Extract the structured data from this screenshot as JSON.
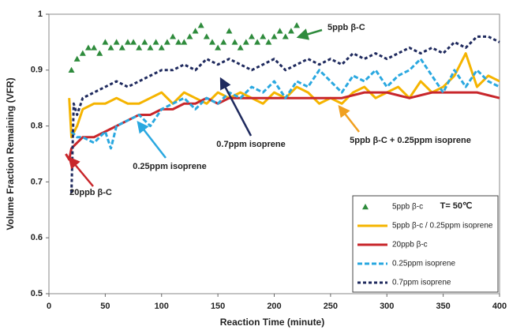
{
  "chart_data": {
    "type": "line",
    "xlabel": "Reaction Time (minute)",
    "ylabel": "Volume Fraction Remaining (VFR)",
    "xlim": [
      0,
      400
    ],
    "xticks": [
      0,
      50,
      100,
      150,
      200,
      250,
      300,
      350,
      400
    ],
    "ylim": [
      0.5,
      1
    ],
    "yticks": [
      0.5,
      0.6,
      0.7,
      0.8,
      0.9,
      1
    ],
    "legend": "lower right",
    "legend_note": "T= 50℃",
    "series": [
      {
        "name": "5ppb β-c",
        "color": "#2e8b3c",
        "style": "markers",
        "x": [
          20,
          25,
          30,
          35,
          40,
          45,
          50,
          55,
          60,
          65,
          70,
          75,
          80,
          85,
          90,
          95,
          100,
          105,
          110,
          115,
          120,
          125,
          130,
          135,
          140,
          145,
          150,
          155,
          160,
          165,
          170,
          175,
          180,
          185,
          190,
          195,
          200,
          205,
          210,
          215,
          220
        ],
        "values": [
          0.9,
          0.92,
          0.93,
          0.94,
          0.94,
          0.93,
          0.95,
          0.94,
          0.95,
          0.94,
          0.95,
          0.95,
          0.94,
          0.95,
          0.94,
          0.95,
          0.94,
          0.95,
          0.96,
          0.95,
          0.95,
          0.96,
          0.97,
          0.98,
          0.96,
          0.95,
          0.94,
          0.95,
          0.97,
          0.95,
          0.94,
          0.95,
          0.96,
          0.95,
          0.96,
          0.95,
          0.96,
          0.97,
          0.96,
          0.97,
          0.98
        ]
      },
      {
        "name": "5ppb β-c / 0.25ppm isoprene",
        "color": "#f5b400",
        "style": "solid",
        "x": [
          18,
          20,
          25,
          30,
          40,
          50,
          60,
          70,
          80,
          90,
          100,
          110,
          120,
          130,
          140,
          150,
          160,
          170,
          180,
          190,
          200,
          210,
          220,
          230,
          240,
          250,
          260,
          270,
          280,
          290,
          300,
          310,
          320,
          330,
          340,
          350,
          360,
          370,
          380,
          390,
          400
        ],
        "values": [
          0.85,
          0.78,
          0.8,
          0.83,
          0.84,
          0.84,
          0.85,
          0.84,
          0.84,
          0.85,
          0.86,
          0.84,
          0.86,
          0.85,
          0.84,
          0.86,
          0.85,
          0.86,
          0.85,
          0.84,
          0.86,
          0.85,
          0.87,
          0.86,
          0.84,
          0.85,
          0.84,
          0.86,
          0.87,
          0.85,
          0.86,
          0.87,
          0.85,
          0.88,
          0.86,
          0.87,
          0.89,
          0.93,
          0.87,
          0.89,
          0.88
        ]
      },
      {
        "name": "20ppb β-c",
        "color": "#c8262b",
        "style": "solid",
        "x": [
          15,
          18,
          20,
          25,
          30,
          40,
          50,
          60,
          70,
          80,
          90,
          100,
          110,
          120,
          130,
          140,
          150,
          160,
          170,
          180,
          190,
          200,
          220,
          240,
          260,
          280,
          300,
          320,
          340,
          360,
          380,
          400
        ],
        "values": [
          0.75,
          0.74,
          0.76,
          0.77,
          0.78,
          0.78,
          0.79,
          0.8,
          0.81,
          0.82,
          0.82,
          0.83,
          0.83,
          0.84,
          0.84,
          0.85,
          0.84,
          0.85,
          0.85,
          0.85,
          0.85,
          0.85,
          0.85,
          0.85,
          0.85,
          0.86,
          0.86,
          0.85,
          0.86,
          0.86,
          0.86,
          0.85
        ]
      },
      {
        "name": "0.25ppm isoprene",
        "color": "#2aa8e0",
        "style": "dashed",
        "x": [
          20,
          25,
          30,
          40,
          50,
          55,
          60,
          70,
          80,
          90,
          100,
          110,
          120,
          130,
          140,
          150,
          160,
          170,
          180,
          190,
          200,
          210,
          220,
          230,
          240,
          250,
          260,
          270,
          280,
          290,
          300,
          310,
          320,
          330,
          340,
          350,
          360,
          370,
          380,
          390,
          400
        ],
        "values": [
          0.79,
          0.78,
          0.78,
          0.77,
          0.79,
          0.76,
          0.8,
          0.81,
          0.82,
          0.8,
          0.83,
          0.84,
          0.85,
          0.83,
          0.85,
          0.84,
          0.86,
          0.85,
          0.87,
          0.86,
          0.88,
          0.85,
          0.88,
          0.87,
          0.9,
          0.88,
          0.86,
          0.89,
          0.88,
          0.9,
          0.87,
          0.89,
          0.9,
          0.92,
          0.89,
          0.86,
          0.9,
          0.87,
          0.9,
          0.88,
          0.87
        ]
      },
      {
        "name": "0.7ppm isoprene",
        "color": "#1f2a5e",
        "style": "dotted",
        "x": [
          20,
          22,
          25,
          30,
          40,
          50,
          60,
          70,
          80,
          90,
          100,
          110,
          120,
          130,
          140,
          150,
          160,
          170,
          180,
          190,
          200,
          210,
          220,
          230,
          240,
          250,
          260,
          270,
          280,
          290,
          300,
          310,
          320,
          330,
          340,
          350,
          360,
          370,
          380,
          390,
          400
        ],
        "values": [
          0.68,
          0.84,
          0.82,
          0.85,
          0.86,
          0.87,
          0.88,
          0.87,
          0.88,
          0.89,
          0.9,
          0.9,
          0.91,
          0.9,
          0.92,
          0.91,
          0.92,
          0.91,
          0.9,
          0.91,
          0.92,
          0.9,
          0.91,
          0.92,
          0.91,
          0.92,
          0.91,
          0.93,
          0.92,
          0.93,
          0.92,
          0.93,
          0.94,
          0.93,
          0.94,
          0.93,
          0.95,
          0.94,
          0.96,
          0.96,
          0.95
        ]
      }
    ],
    "annotations": [
      {
        "text": "5ppb β-C",
        "color": "#2e8b3c"
      },
      {
        "text": "0.7ppm isoprene",
        "color": "#1f2a5e"
      },
      {
        "text": "0.25ppm isoprene",
        "color": "#2aa8e0"
      },
      {
        "text": "20ppb β-C",
        "color": "#c8262b"
      },
      {
        "text": "5ppb β-C + 0.25ppm isoprene",
        "color": "#f0a020"
      }
    ]
  }
}
